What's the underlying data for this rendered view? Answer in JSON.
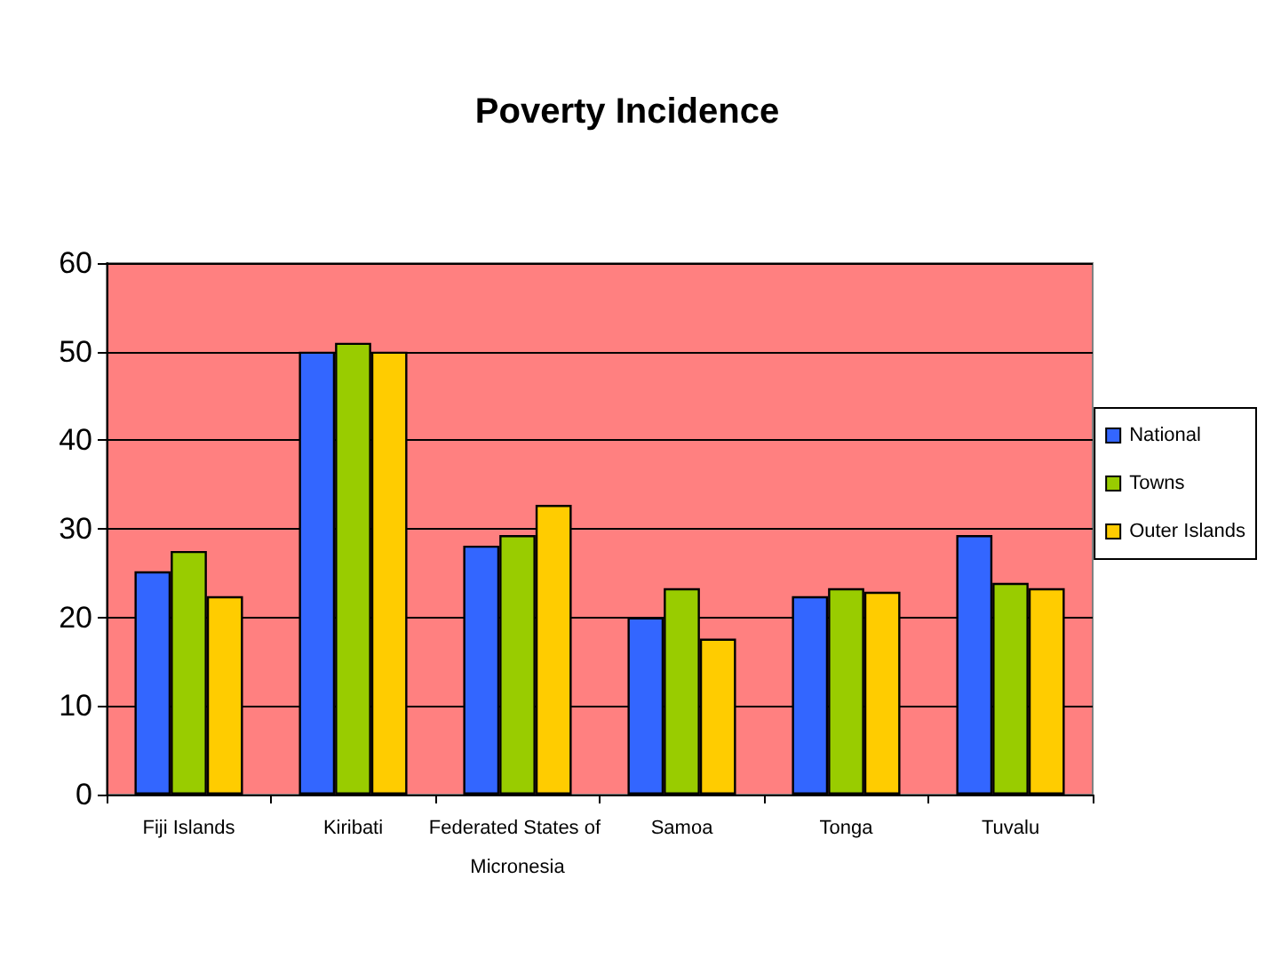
{
  "chart_data": {
    "type": "bar",
    "title": "Poverty Incidence",
    "categories": [
      "Fiji Islands",
      "Kiribati",
      "Federated States of Micronesia",
      "Samoa",
      "Tonga",
      "Tuvalu"
    ],
    "series": [
      {
        "name": "National",
        "color": "#3366ff",
        "values": [
          25.2,
          50,
          28.1,
          20,
          22.4,
          29.3
        ]
      },
      {
        "name": "Towns",
        "color": "#99cc00",
        "values": [
          27.5,
          51,
          29.3,
          23.3,
          23.3,
          23.9
        ]
      },
      {
        "name": "Outer Islands",
        "color": "#ffcc00",
        "values": [
          22.4,
          50,
          32.7,
          17.6,
          22.9,
          23.3
        ]
      }
    ],
    "ylim": [
      0,
      60
    ],
    "yticks": [
      0,
      10,
      20,
      30,
      40,
      50,
      60
    ],
    "grid": "y",
    "legend": "right"
  }
}
